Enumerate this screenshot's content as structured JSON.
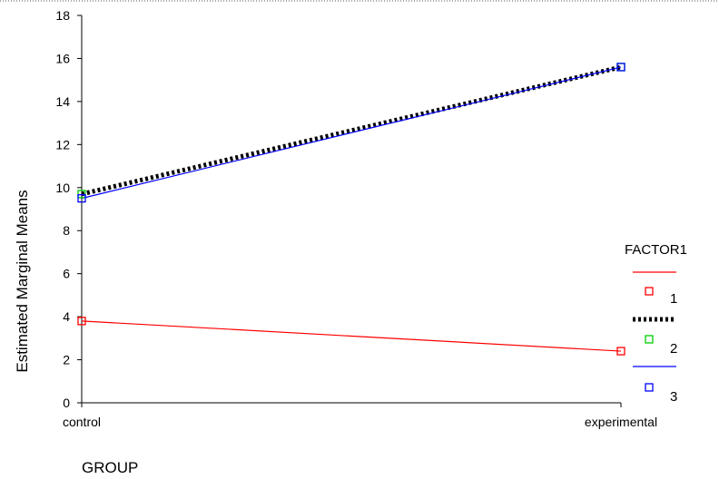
{
  "chart_data": {
    "type": "line",
    "xlabel": "GROUP",
    "ylabel": "Estimated Marginal Means",
    "categories": [
      "control",
      "experimental"
    ],
    "ylim": [
      0,
      18
    ],
    "yticks": [
      0,
      2,
      4,
      6,
      8,
      10,
      12,
      14,
      16,
      18
    ],
    "grid": false,
    "legend": {
      "title": "FACTOR1",
      "placement": "right"
    },
    "series": [
      {
        "name": "1",
        "values": [
          3.8,
          2.4
        ],
        "color": "#ff0000",
        "style": "solid",
        "marker_color": "#ff0000"
      },
      {
        "name": "2",
        "values": [
          9.7,
          15.6
        ],
        "color": "#000000",
        "style": "dotted-thick",
        "marker_color": "#00cc00"
      },
      {
        "name": "3",
        "values": [
          9.5,
          15.6
        ],
        "color": "#0000ff",
        "style": "solid",
        "marker_color": "#0000ff"
      }
    ]
  }
}
